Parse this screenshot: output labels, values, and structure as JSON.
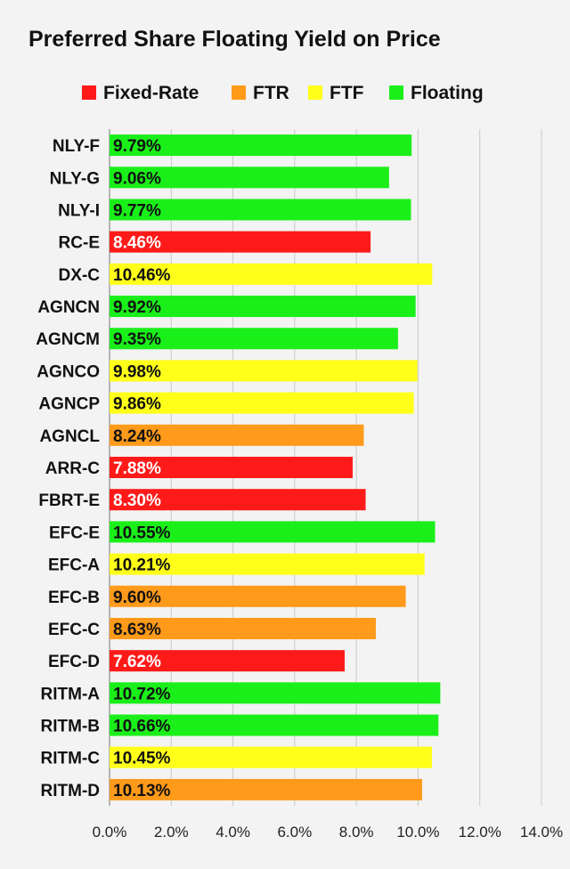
{
  "chart_data": {
    "type": "bar",
    "orientation": "horizontal",
    "title": "Preferred Share Floating Yield on Price",
    "xlabel": "",
    "ylabel": "",
    "xlim": [
      0,
      14
    ],
    "x_ticks": [
      "0.0%",
      "2.0%",
      "4.0%",
      "6.0%",
      "8.0%",
      "10.0%",
      "12.0%",
      "14.0%"
    ],
    "grid": "vertical",
    "legend_position": "top",
    "legend": [
      {
        "name": "Fixed-Rate",
        "color": "#ff1a1a"
      },
      {
        "name": "FTR",
        "color": "#ff9a1a"
      },
      {
        "name": "FTF",
        "color": "#ffff1a"
      },
      {
        "name": "Floating",
        "color": "#1aef1a"
      }
    ],
    "categories": [
      "NLY-F",
      "NLY-G",
      "NLY-I",
      "RC-E",
      "DX-C",
      "AGNCN",
      "AGNCM",
      "AGNCO",
      "AGNCP",
      "AGNCL",
      "ARR-C",
      "FBRT-E",
      "EFC-E",
      "EFC-A",
      "EFC-B",
      "EFC-C",
      "EFC-D",
      "RITM-A",
      "RITM-B",
      "RITM-C",
      "RITM-D"
    ],
    "values": [
      9.79,
      9.06,
      9.77,
      8.46,
      10.46,
      9.92,
      9.35,
      9.98,
      9.86,
      8.24,
      7.88,
      8.3,
      10.55,
      10.21,
      9.6,
      8.63,
      7.62,
      10.72,
      10.66,
      10.45,
      10.13
    ],
    "labels": [
      "9.79%",
      "9.06%",
      "9.77%",
      "8.46%",
      "10.46%",
      "9.92%",
      "9.35%",
      "9.98%",
      "9.86%",
      "8.24%",
      "7.88%",
      "8.30%",
      "10.55%",
      "10.21%",
      "9.60%",
      "8.63%",
      "7.62%",
      "10.72%",
      "10.66%",
      "10.45%",
      "10.13%"
    ],
    "types": [
      "Floating",
      "Floating",
      "Floating",
      "Fixed-Rate",
      "FTF",
      "Floating",
      "Floating",
      "FTF",
      "FTF",
      "FTR",
      "Fixed-Rate",
      "Fixed-Rate",
      "Floating",
      "FTF",
      "FTR",
      "FTR",
      "Fixed-Rate",
      "Floating",
      "Floating",
      "FTF",
      "FTR"
    ]
  }
}
